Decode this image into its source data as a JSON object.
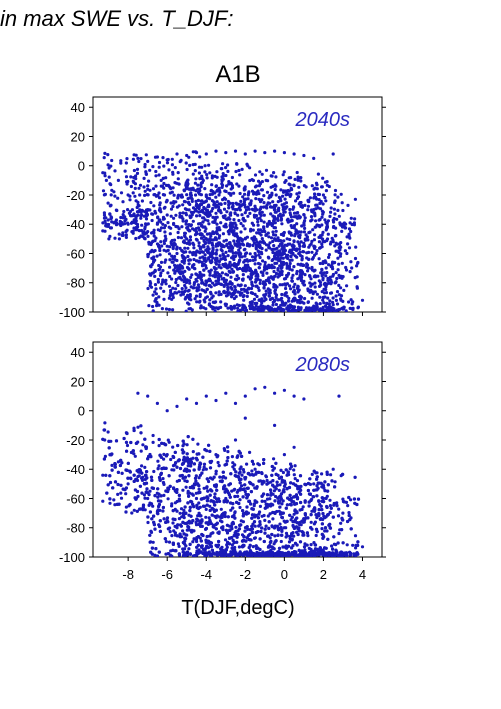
{
  "heading": "in max SWE vs. T_DJF:",
  "figure_title": "A1B",
  "xlabel": "T(DJF,degC)",
  "colors": {
    "points": "#1a1ab8",
    "label": "#2a2ac0",
    "frame": "#000000"
  },
  "chart_data": [
    {
      "type": "scatter",
      "title": "",
      "annotation": "2040s",
      "xlabel": "",
      "ylabel": "",
      "xlim": [
        -9.8,
        5
      ],
      "ylim": [
        -100,
        47
      ],
      "xticks": [
        -8,
        -6,
        -4,
        -2,
        0,
        2,
        4
      ],
      "xtick_labels_shown": false,
      "yticks": [
        -100,
        -80,
        -60,
        -40,
        -20,
        0,
        20,
        40
      ],
      "grid": false,
      "series": [
        {
          "points_estimated": [
            [
              -7.5,
              5
            ],
            [
              -7,
              3
            ],
            [
              -6.5,
              6
            ],
            [
              -6,
              4
            ],
            [
              -5.5,
              8
            ],
            [
              -5,
              7
            ],
            [
              -4.5,
              9
            ],
            [
              -4,
              8
            ],
            [
              -3.5,
              10
            ],
            [
              -3,
              9
            ],
            [
              -2.5,
              10
            ],
            [
              -2,
              8
            ],
            [
              -1.5,
              10
            ],
            [
              -1,
              9
            ],
            [
              -0.5,
              10
            ],
            [
              0,
              9
            ],
            [
              0.5,
              8
            ],
            [
              1,
              7
            ],
            [
              1.5,
              5
            ],
            [
              2.5,
              8
            ],
            [
              -9.2,
              -5
            ],
            [
              -8.5,
              -10
            ],
            [
              -8,
              -20
            ],
            [
              -7.5,
              -25
            ],
            [
              -7,
              -30
            ],
            [
              -8,
              -40
            ],
            [
              -7,
              -45
            ],
            [
              -6.5,
              -40
            ],
            [
              -6,
              -55
            ],
            [
              -5.5,
              -60
            ],
            [
              -5,
              -50
            ],
            [
              -4.5,
              -65
            ],
            [
              -4,
              -70
            ],
            [
              -3.5,
              -75
            ],
            [
              -3,
              -80
            ],
            [
              -2.5,
              -85
            ],
            [
              -2,
              -82
            ],
            [
              -1.5,
              -88
            ],
            [
              -1,
              -90
            ],
            [
              -0.5,
              -92
            ],
            [
              0,
              -95
            ],
            [
              0.5,
              -97
            ],
            [
              1,
              -94
            ],
            [
              1.5,
              -96
            ],
            [
              2,
              -90
            ],
            [
              2.5,
              -95
            ],
            [
              3,
              -98
            ],
            [
              3.5,
              -93
            ],
            [
              4,
              -92
            ],
            [
              -3,
              -40
            ],
            [
              -2,
              -50
            ],
            [
              -1,
              -45
            ],
            [
              -2.5,
              -30
            ],
            [
              -1.5,
              -60
            ],
            [
              -0.5,
              -35
            ],
            [
              0.5,
              -55
            ],
            [
              1,
              -40
            ],
            [
              -4,
              -20
            ],
            [
              -3.5,
              -55
            ],
            [
              -5,
              -30
            ],
            [
              -4.5,
              -45
            ],
            [
              -2,
              -65
            ],
            [
              -1,
              -70
            ],
            [
              0,
              -60
            ],
            [
              1.5,
              -30
            ],
            [
              2,
              -20
            ],
            [
              3,
              -40
            ],
            [
              3.2,
              -60
            ],
            [
              2.8,
              -75
            ]
          ]
        }
      ]
    },
    {
      "type": "scatter",
      "title": "",
      "annotation": "2080s",
      "xlabel": "T(DJF,degC)",
      "ylabel": "",
      "xlim": [
        -9.8,
        5
      ],
      "ylim": [
        -100,
        47
      ],
      "xticks": [
        -8,
        -6,
        -4,
        -2,
        0,
        2,
        4
      ],
      "xtick_labels": [
        "-8",
        "-6",
        "-4",
        "-2",
        "0",
        "2",
        "4"
      ],
      "yticks": [
        -100,
        -80,
        -60,
        -40,
        -20,
        0,
        20,
        40
      ],
      "grid": false,
      "series": [
        {
          "points_estimated": [
            [
              -7.5,
              12
            ],
            [
              -7,
              10
            ],
            [
              -6.5,
              5
            ],
            [
              -6,
              0
            ],
            [
              -5.5,
              3
            ],
            [
              -5,
              8
            ],
            [
              -4.5,
              5
            ],
            [
              -4,
              10
            ],
            [
              -3.5,
              7
            ],
            [
              -3,
              12
            ],
            [
              -2.5,
              5
            ],
            [
              -2,
              10
            ],
            [
              -1.5,
              15
            ],
            [
              -1,
              16
            ],
            [
              -0.5,
              12
            ],
            [
              0,
              14
            ],
            [
              0.5,
              10
            ],
            [
              1,
              8
            ],
            [
              2.8,
              10
            ],
            [
              -9.2,
              -20
            ],
            [
              -8.5,
              -35
            ],
            [
              -8,
              -50
            ],
            [
              -7.5,
              -45
            ],
            [
              -7,
              -60
            ],
            [
              -6.5,
              -70
            ],
            [
              -6,
              -75
            ],
            [
              -5.5,
              -80
            ],
            [
              -5,
              -85
            ],
            [
              -4.5,
              -88
            ],
            [
              -4,
              -90
            ],
            [
              -3.5,
              -92
            ],
            [
              -3,
              -95
            ],
            [
              -2.5,
              -97
            ],
            [
              -2,
              -98
            ],
            [
              -1.5,
              -99
            ],
            [
              -1,
              -98
            ],
            [
              -0.5,
              -99
            ],
            [
              0,
              -99
            ],
            [
              0.5,
              -98
            ],
            [
              1,
              -97
            ],
            [
              1.5,
              -96
            ],
            [
              2,
              -97
            ],
            [
              2.5,
              -98
            ],
            [
              3,
              -99
            ],
            [
              3.5,
              -92
            ],
            [
              4,
              -93
            ],
            [
              -3,
              -60
            ],
            [
              -2,
              -70
            ],
            [
              -1,
              -75
            ],
            [
              0,
              -80
            ],
            [
              1,
              -85
            ],
            [
              -4,
              -40
            ],
            [
              -3.5,
              -30
            ],
            [
              -2.5,
              -20
            ],
            [
              -1.5,
              -40
            ],
            [
              -0.5,
              -10
            ],
            [
              0.5,
              -25
            ],
            [
              1.5,
              -50
            ],
            [
              2,
              -60
            ],
            [
              2.5,
              -40
            ],
            [
              3,
              -70
            ],
            [
              -5,
              -40
            ],
            [
              -4.5,
              -60
            ],
            [
              -6,
              -30
            ],
            [
              -2,
              -5
            ],
            [
              0,
              -30
            ]
          ]
        }
      ]
    }
  ]
}
